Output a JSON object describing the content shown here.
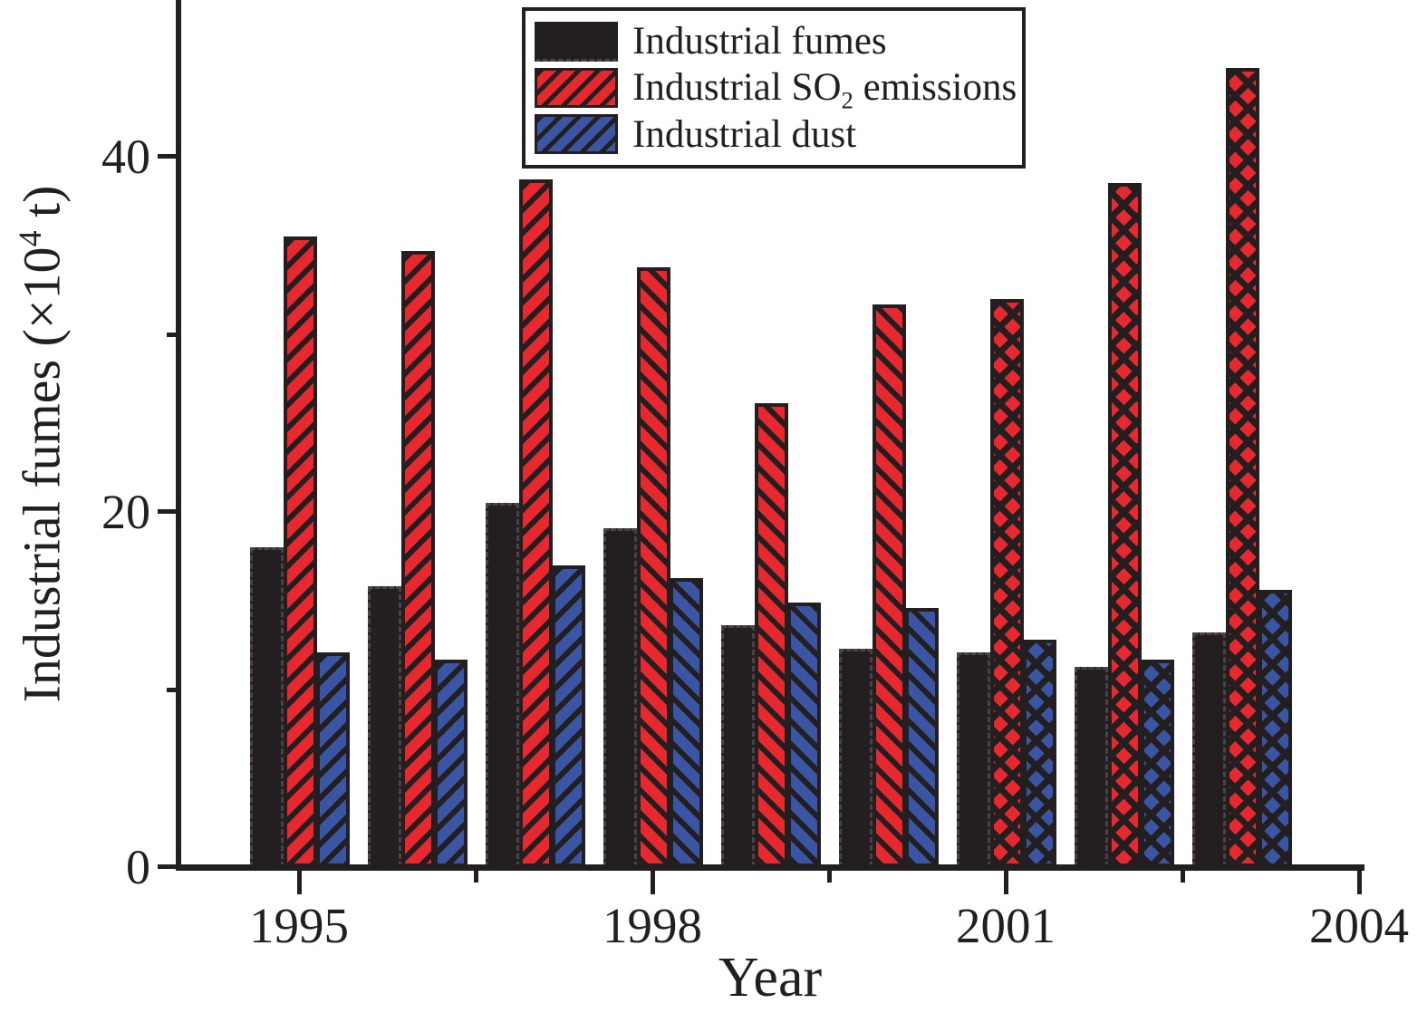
{
  "figure_title": "",
  "axes": {
    "ylabel": {
      "pre": "Industrial fumes (×10",
      "sup": "4",
      "post": " t)"
    },
    "xlabel": "Year"
  },
  "legend": {
    "items": [
      {
        "key": "industrial-fumes",
        "pre": "Industrial fumes",
        "sub": "",
        "post": ""
      },
      {
        "key": "industrial-so2-emissions",
        "pre": "Industrial SO",
        "sub": "2",
        "post": " emissions"
      },
      {
        "key": "industrial-dust",
        "pre": "Industrial dust",
        "sub": "",
        "post": ""
      }
    ]
  },
  "chart_data": {
    "type": "bar",
    "title": "",
    "xlabel": "Year",
    "ylabel": "Industrial fumes (×10⁴ t)",
    "categories": [
      1995,
      1996,
      1997,
      1998,
      1999,
      2000,
      2001,
      2002,
      2003
    ],
    "series": [
      {
        "key": "industrial-fumes",
        "name": "Industrial fumes",
        "color": "#231f20",
        "pattern": "solid",
        "values": [
          18.0,
          15.8,
          20.5,
          19.1,
          13.6,
          12.3,
          12.1,
          11.3,
          13.2
        ]
      },
      {
        "key": "industrial-so2-emissions",
        "name": "Industrial SO₂ emissions",
        "color": "#e8282f",
        "pattern": "hatch",
        "values": [
          35.5,
          34.7,
          38.7,
          33.8,
          26.1,
          31.7,
          32.0,
          38.5,
          45.0
        ]
      },
      {
        "key": "industrial-dust",
        "name": "Industrial dust",
        "color": "#3b55a5",
        "pattern": "hatch",
        "values": [
          12.1,
          11.7,
          17.0,
          16.3,
          14.9,
          14.6,
          12.8,
          11.7,
          15.6
        ]
      }
    ],
    "hatch_by_year": [
      "fwd",
      "fwd",
      "fwd",
      "back",
      "back",
      "back",
      "cross",
      "cross",
      "cross"
    ],
    "ylim": [
      0,
      48
    ],
    "yticks": [
      0,
      20,
      40
    ],
    "yticks_minor": [
      10,
      30
    ],
    "xticks": [
      1995,
      1998,
      2001,
      2004
    ],
    "xticks_minor": [
      1996.5,
      1999.5,
      2002.5
    ],
    "grid": false,
    "legend_position": "top-center-inside",
    "hatch_line_color": "#231f20"
  }
}
